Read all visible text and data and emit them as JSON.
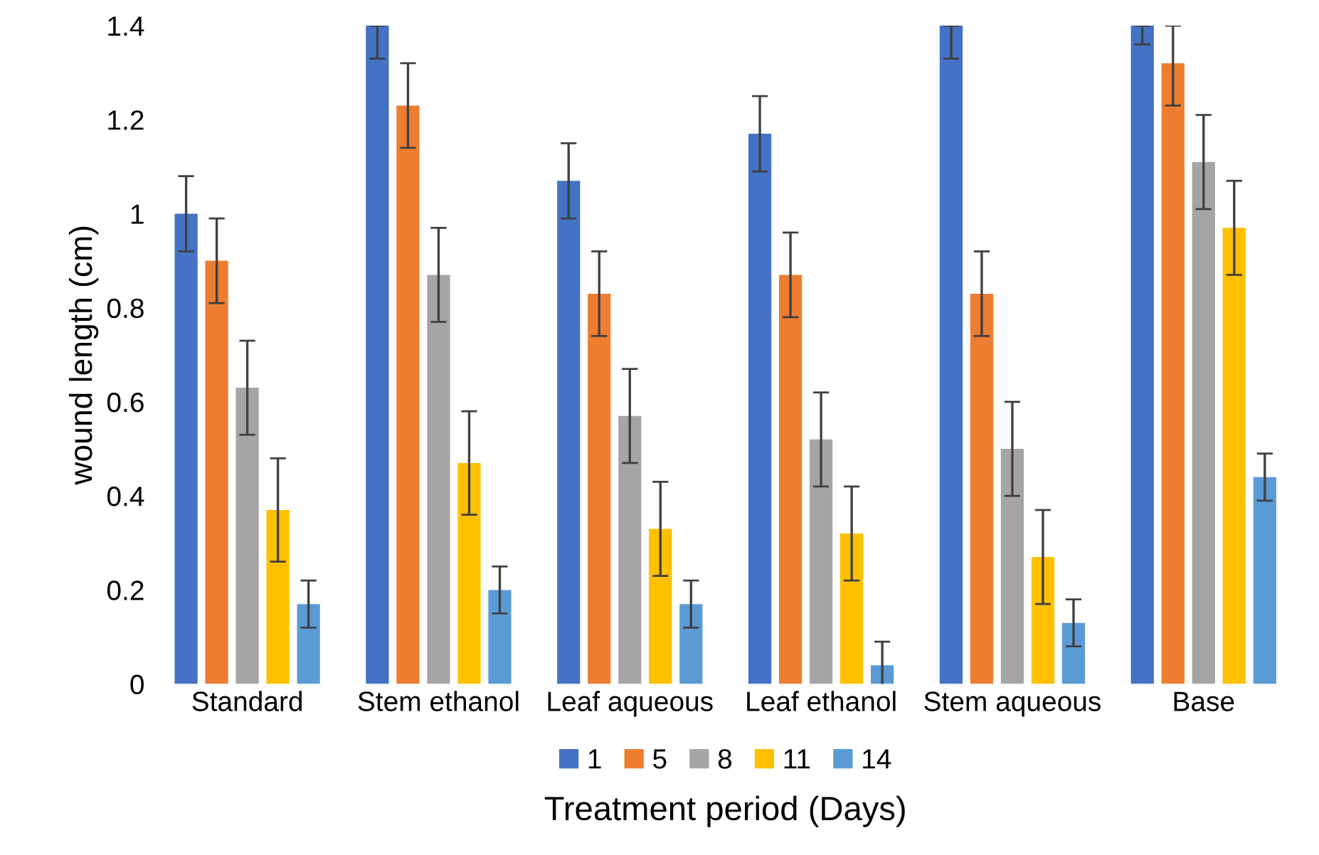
{
  "chart_data": {
    "type": "bar",
    "xlabel": "Treatment period (Days)",
    "ylabel": "wound length (cm)",
    "categories": [
      "Standard",
      "Stem ethanol",
      "Leaf aqueous",
      "Leaf ethanol",
      "Stem aqueous",
      "Base"
    ],
    "series": [
      {
        "name": "1",
        "color": "#4472c4",
        "values": [
          1.0,
          1.4,
          1.07,
          1.17,
          1.4,
          1.4
        ],
        "errors": [
          0.08,
          [
            1.33,
            1.4
          ],
          0.08,
          0.08,
          [
            1.33,
            1.4
          ],
          [
            1.36,
            1.4
          ]
        ]
      },
      {
        "name": "5",
        "color": "#ed7d31",
        "values": [
          0.9,
          1.23,
          0.83,
          0.87,
          0.83,
          1.32
        ],
        "errors": [
          0.09,
          0.09,
          0.09,
          0.09,
          0.09,
          [
            1.23,
            1.4
          ]
        ]
      },
      {
        "name": "8",
        "color": "#a5a5a5",
        "values": [
          0.63,
          0.87,
          0.57,
          0.52,
          0.5,
          1.11
        ],
        "errors": [
          0.1,
          0.1,
          0.1,
          0.1,
          0.1,
          0.1
        ]
      },
      {
        "name": "11",
        "color": "#ffc000",
        "values": [
          0.37,
          0.47,
          0.33,
          0.32,
          0.27,
          0.97
        ],
        "errors": [
          0.11,
          0.11,
          0.1,
          0.1,
          0.1,
          0.1
        ]
      },
      {
        "name": "14",
        "color": "#5b9bd5",
        "values": [
          0.17,
          0.2,
          0.17,
          0.04,
          0.13,
          0.44
        ],
        "errors": [
          0.05,
          0.05,
          0.05,
          0.05,
          0.05,
          0.05
        ]
      }
    ],
    "ylim": [
      0,
      1.4
    ],
    "yticks": [
      0,
      0.2,
      0.4,
      0.6,
      0.8,
      1,
      1.2,
      1.4
    ],
    "grid": false,
    "legend": "bottom"
  }
}
